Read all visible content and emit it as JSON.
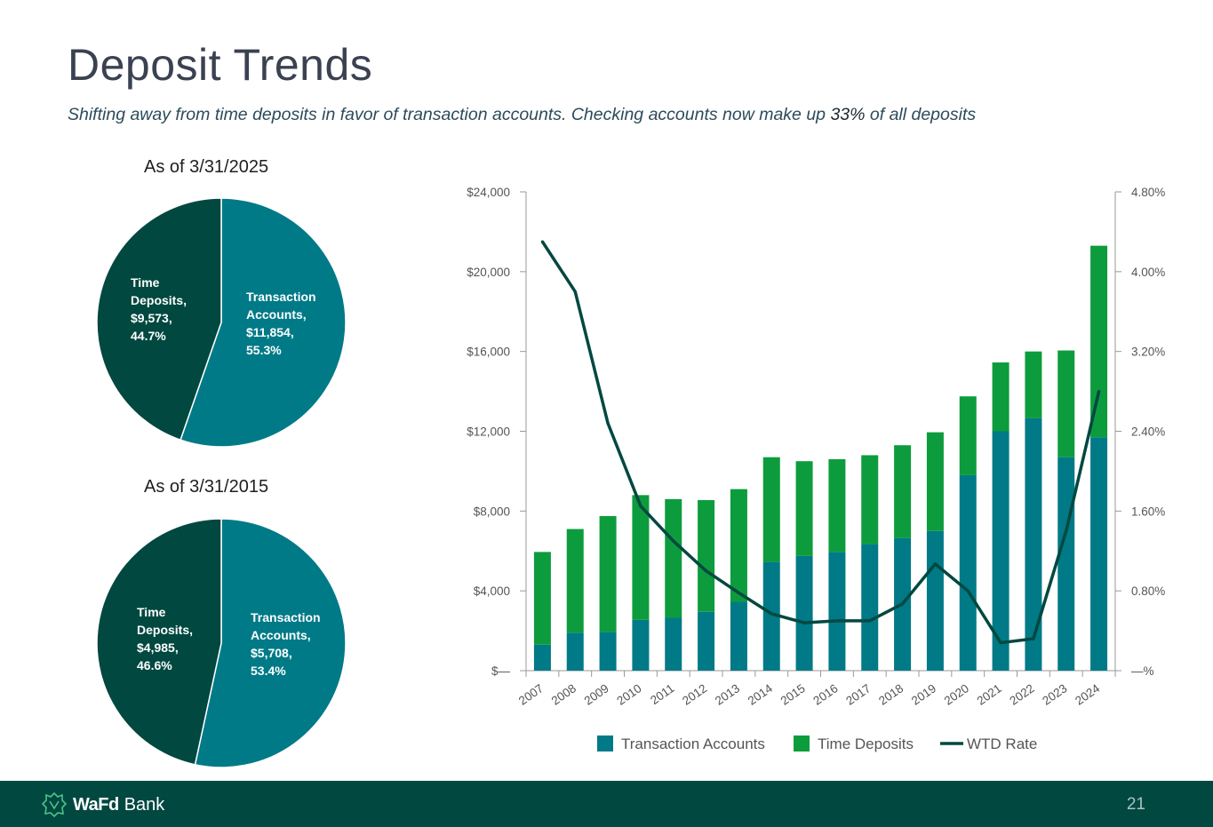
{
  "page": {
    "title": "Deposit Trends",
    "subtitle_pre": "Shifting away from time deposits in favor of transaction accounts.  Checking accounts now make up ",
    "subtitle_highlight": "33%",
    "subtitle_post": " of all deposits",
    "page_number": "21",
    "brand_bold": "WaFd",
    "brand_rest": "Bank"
  },
  "colors": {
    "transaction": "#007a87",
    "time_deposits": "#0d9c3d",
    "time_pie": "#004840",
    "rate_line": "#004840",
    "footer": "#004840"
  },
  "chart_data": [
    {
      "type": "pie",
      "title": "As of 3/31/2025",
      "slices": [
        {
          "name": "Transaction Accounts",
          "value": 11854,
          "label_name": "Transaction",
          "label_name2": "Accounts,",
          "label_value": "$11,854,",
          "label_pct": "55.3%",
          "percent": 55.3
        },
        {
          "name": "Time Deposits",
          "value": 9573,
          "label_name": "Time",
          "label_name2": "Deposits,",
          "label_value": "$9,573,",
          "label_pct": "44.7%",
          "percent": 44.7
        }
      ]
    },
    {
      "type": "pie",
      "title": "As of 3/31/2015",
      "slices": [
        {
          "name": "Transaction Accounts",
          "value": 5708,
          "label_name": "Transaction",
          "label_name2": "Accounts,",
          "label_value": "$5,708,",
          "label_pct": "53.4%",
          "percent": 53.4
        },
        {
          "name": "Time Deposits",
          "value": 4985,
          "label_name": "Time",
          "label_name2": "Deposits,",
          "label_value": "$4,985,",
          "label_pct": "46.6%",
          "percent": 46.6
        }
      ]
    },
    {
      "type": "bar",
      "stacked": true,
      "categories": [
        "2007",
        "2008",
        "2009",
        "2010",
        "2011",
        "2012",
        "2013",
        "2014",
        "2015",
        "2016",
        "2017",
        "2018",
        "2019",
        "2020",
        "2021",
        "2022",
        "2023",
        "2024"
      ],
      "series": [
        {
          "name": "Transaction Accounts",
          "values": [
            1300,
            1900,
            1950,
            2550,
            2650,
            2950,
            3450,
            5450,
            5750,
            5950,
            6350,
            6650,
            7000,
            9800,
            12000,
            12650,
            10700,
            11700
          ]
        },
        {
          "name": "Time Deposits",
          "values": [
            4650,
            5200,
            5800,
            6250,
            5950,
            5600,
            5650,
            5250,
            4750,
            4650,
            4450,
            4650,
            4950,
            3950,
            3450,
            3350,
            5350,
            9600
          ]
        }
      ],
      "line_series": {
        "name": "WTD Rate",
        "axis": "right",
        "values": [
          4.3,
          3.8,
          2.48,
          1.65,
          1.3,
          1.0,
          0.78,
          0.57,
          0.48,
          0.5,
          0.5,
          0.67,
          1.07,
          0.8,
          0.28,
          0.32,
          1.4,
          2.8
        ]
      },
      "y_left": {
        "min": 0,
        "max": 24000,
        "ticks": [
          0,
          4000,
          8000,
          12000,
          16000,
          20000,
          24000
        ],
        "tick_labels": [
          "$—",
          "$4,000",
          "$8,000",
          "$12,000",
          "$16,000",
          "$20,000",
          "$24,000"
        ]
      },
      "y_right": {
        "min": 0,
        "max": 4.8,
        "ticks": [
          0,
          0.8,
          1.6,
          2.4,
          3.2,
          4.0,
          4.8
        ],
        "tick_labels": [
          "—%",
          "0.80%",
          "1.60%",
          "2.40%",
          "3.20%",
          "4.00%",
          "4.80%"
        ]
      },
      "legend": [
        "Transaction Accounts",
        "Time Deposits",
        "WTD Rate"
      ],
      "legend_position": "bottom"
    }
  ]
}
